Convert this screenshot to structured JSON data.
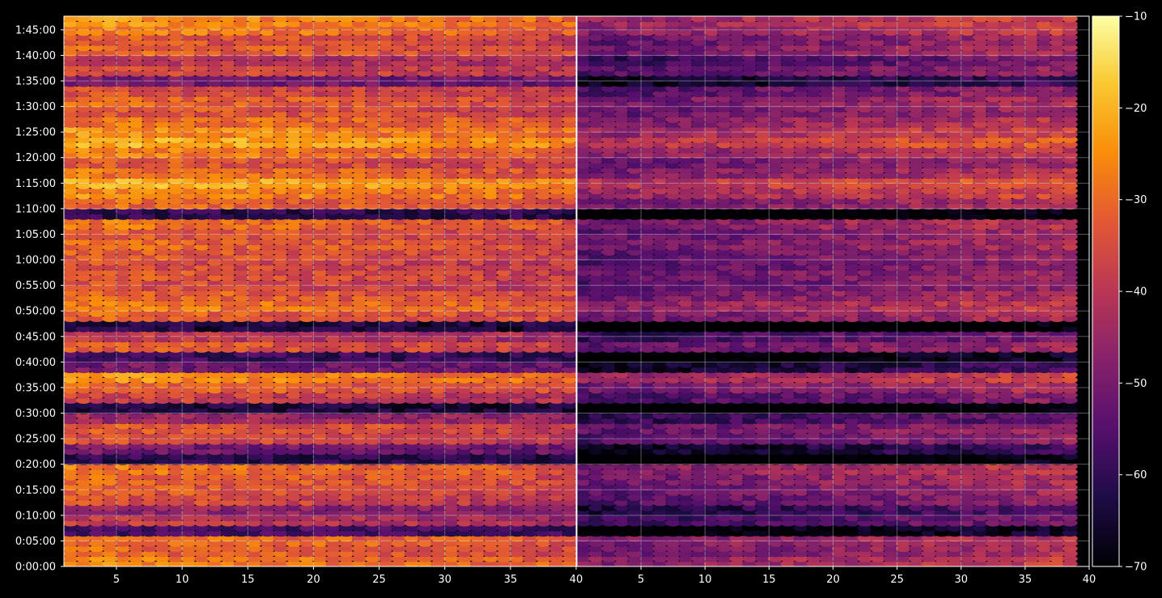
{
  "chart_data": {
    "type": "heatmap",
    "title": "",
    "xlabel": "",
    "ylabel": "",
    "grid": true,
    "colormap": "inferno",
    "background": "#000000",
    "panels": [
      {
        "name": "",
        "x_range": [
          1,
          40
        ],
        "x_ticks": [
          "5",
          "10",
          "15",
          "20",
          "25",
          "30",
          "35",
          "40"
        ]
      },
      {
        "name": "",
        "x_range": [
          0,
          40
        ],
        "x_ticks": [
          "5",
          "10",
          "15",
          "20",
          "25",
          "30",
          "35",
          "40"
        ]
      }
    ],
    "y_range_seconds": [
      0,
      6460
    ],
    "y_ticks": [
      "0:00:00",
      "0:05:00",
      "0:10:00",
      "0:15:00",
      "0:20:00",
      "0:25:00",
      "0:30:00",
      "0:35:00",
      "0:40:00",
      "0:45:00",
      "0:50:00",
      "0:55:00",
      "1:00:00",
      "1:05:00",
      "1:10:00",
      "1:15:00",
      "1:20:00",
      "1:25:00",
      "1:30:00",
      "1:35:00",
      "1:40:00",
      "1:45:00"
    ],
    "colorbar": {
      "range": [
        -70,
        -10
      ],
      "ticks": [
        "−10",
        "−20",
        "−30",
        "−40",
        "−50",
        "−60",
        "−70"
      ]
    },
    "row_profile": [
      {
        "t": 60,
        "level": -32
      },
      {
        "t": 180,
        "level": -36
      },
      {
        "t": 300,
        "level": -34
      },
      {
        "t": 420,
        "level": -58
      },
      {
        "t": 540,
        "level": -44
      },
      {
        "t": 660,
        "level": -48
      },
      {
        "t": 780,
        "level": -40
      },
      {
        "t": 900,
        "level": -38
      },
      {
        "t": 1020,
        "level": -36
      },
      {
        "t": 1140,
        "level": -33
      },
      {
        "t": 1260,
        "level": -62
      },
      {
        "t": 1380,
        "level": -52
      },
      {
        "t": 1500,
        "level": -40
      },
      {
        "t": 1620,
        "level": -38
      },
      {
        "t": 1740,
        "level": -46
      },
      {
        "t": 1860,
        "level": -64
      },
      {
        "t": 1980,
        "level": -42
      },
      {
        "t": 2100,
        "level": -36
      },
      {
        "t": 2220,
        "level": -30
      },
      {
        "t": 2340,
        "level": -52
      },
      {
        "t": 2460,
        "level": -60
      },
      {
        "t": 2580,
        "level": -38
      },
      {
        "t": 2700,
        "level": -44
      },
      {
        "t": 2820,
        "level": -64
      },
      {
        "t": 2940,
        "level": -36
      },
      {
        "t": 3060,
        "level": -32
      },
      {
        "t": 3180,
        "level": -36
      },
      {
        "t": 3300,
        "level": -40
      },
      {
        "t": 3420,
        "level": -38
      },
      {
        "t": 3540,
        "level": -40
      },
      {
        "t": 3660,
        "level": -38
      },
      {
        "t": 3780,
        "level": -36
      },
      {
        "t": 3900,
        "level": -38
      },
      {
        "t": 4020,
        "level": -34
      },
      {
        "t": 4140,
        "level": -62
      },
      {
        "t": 4260,
        "level": -36
      },
      {
        "t": 4380,
        "level": -30
      },
      {
        "t": 4500,
        "level": -26
      },
      {
        "t": 4620,
        "level": -34
      },
      {
        "t": 4740,
        "level": -38
      },
      {
        "t": 4860,
        "level": -32
      },
      {
        "t": 4980,
        "level": -26
      },
      {
        "t": 5100,
        "level": -30
      },
      {
        "t": 5220,
        "level": -34
      },
      {
        "t": 5340,
        "level": -38
      },
      {
        "t": 5460,
        "level": -36
      },
      {
        "t": 5580,
        "level": -40
      },
      {
        "t": 5700,
        "level": -52
      },
      {
        "t": 5820,
        "level": -40
      },
      {
        "t": 5940,
        "level": -44
      },
      {
        "t": 6060,
        "level": -36
      },
      {
        "t": 6180,
        "level": -38
      },
      {
        "t": 6300,
        "level": -32
      },
      {
        "t": 6400,
        "level": -30
      }
    ],
    "column_trend": {
      "left_panel_left_boost_db": 6,
      "right_panel_offset_db": -10,
      "right_panel_left_dim_db": 10,
      "right_panel_right_boost_db": 4
    }
  }
}
